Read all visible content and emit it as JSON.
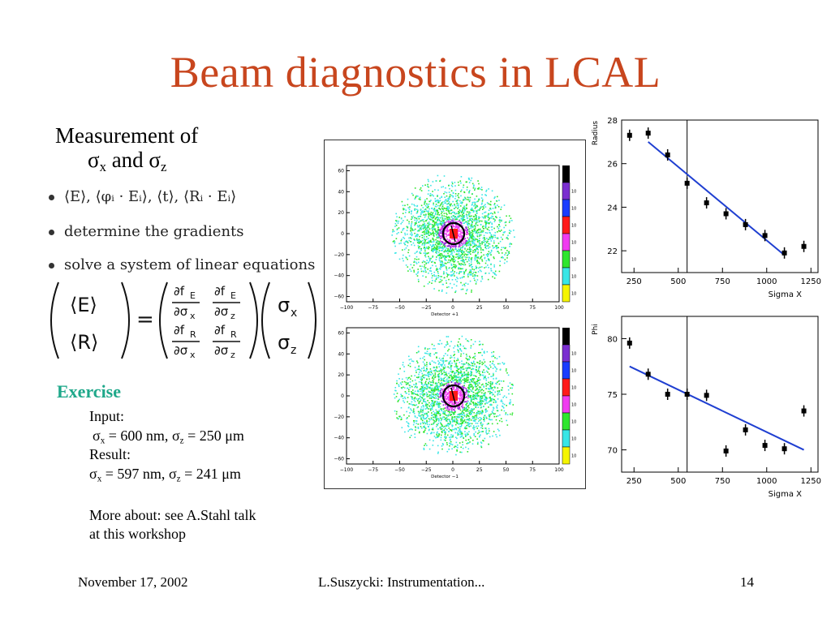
{
  "slide": {
    "title": "Beam diagnostics in LCAL",
    "measurement_line1": "Measurement of",
    "measurement_sigma_x": "σ",
    "measurement_x": "x",
    "measurement_and": " and ",
    "measurement_sigma_z": "σ",
    "measurement_z": "z",
    "bullets": [
      "⟨E⟩, ⟨φᵢ · Eᵢ⟩, ⟨t⟩, ⟨Rᵢ · Eᵢ⟩",
      "determine the gradients",
      "solve a system of linear equations"
    ],
    "equation": {
      "lhs": [
        "⟨E⟩",
        "⟨R⟩"
      ],
      "eq": "=",
      "m11_num": "∂f",
      "m11_sub": "E",
      "m11_den": "∂σ",
      "m11_dsub": "x",
      "m12_num": "∂f",
      "m12_sub": "E",
      "m12_den": "∂σ",
      "m12_dsub": "z",
      "m21_num": "∂f",
      "m21_sub": "R",
      "m21_den": "∂σ",
      "m21_dsub": "x",
      "m22_num": "∂f",
      "m22_sub": "R",
      "m22_den": "∂σ",
      "m22_dsub": "z",
      "rhs": [
        "σ",
        "σ"
      ],
      "rhs_sub": [
        "x",
        "z"
      ]
    },
    "exercise": {
      "heading": "Exercise",
      "input_label": "Input:",
      "input_sx": "σ",
      "input_x": "x",
      "input_mid": " = 600 nm, ",
      "input_sz": "σ",
      "input_z": "z",
      "input_end": " = 250 μm",
      "result_label": "Result:",
      "result_sx": "σ",
      "result_x": "x",
      "result_mid": " = 597 nm, ",
      "result_sz": "σ",
      "result_z": "z",
      "result_end": " = 241 μm",
      "more1": "More about: see A.Stahl talk",
      "more2": "at this workshop"
    },
    "footer": {
      "date": "November 17, 2002",
      "author": "L.Suszycki: Instrumentation...",
      "page": "14"
    }
  },
  "colors": {
    "title": "#c8461e",
    "exercise": "#1ea88a",
    "fit_line": "#1f3fd1"
  },
  "chart_data": [
    {
      "type": "heatmap",
      "xlabel": "Detector +1",
      "xticks": [
        "−100",
        "−75",
        "−50",
        "−25",
        "0",
        "25",
        "50",
        "75",
        "100"
      ],
      "yticks": [
        "60",
        "40",
        "20",
        "0",
        "−20",
        "−40",
        "−60"
      ],
      "xlim": [
        -100,
        100
      ],
      "ylim": [
        -65,
        65
      ],
      "colorbar": [
        "violet",
        "blue",
        "red",
        "magenta",
        "green",
        "cyan",
        "yellow"
      ],
      "colorbar_ticks": [
        "10",
        "10",
        "10",
        "10",
        "10",
        "10",
        "10"
      ]
    },
    {
      "type": "heatmap",
      "xlabel": "Detector −1",
      "xticks": [
        "−100",
        "−75",
        "−50",
        "−25",
        "0",
        "25",
        "50",
        "75",
        "100"
      ],
      "yticks": [
        "60",
        "40",
        "20",
        "0",
        "−20",
        "−40",
        "−60"
      ],
      "xlim": [
        -100,
        100
      ],
      "ylim": [
        -65,
        65
      ],
      "colorbar": [
        "violet",
        "blue",
        "red",
        "magenta",
        "green",
        "cyan",
        "yellow"
      ],
      "colorbar_ticks": [
        "10",
        "10",
        "10",
        "10",
        "10",
        "10",
        "10"
      ]
    },
    {
      "type": "scatter",
      "ylabel": "Radius",
      "xlabel": "Sigma X",
      "xlim": [
        180,
        1290
      ],
      "ylim": [
        21,
        28
      ],
      "xticks": [
        250,
        500,
        750,
        1000,
        1250
      ],
      "yticks": [
        22,
        24,
        26,
        28
      ],
      "vline": 550,
      "points": [
        [
          225,
          27.3
        ],
        [
          330,
          27.4
        ],
        [
          440,
          26.4
        ],
        [
          550,
          25.1
        ],
        [
          660,
          24.2
        ],
        [
          770,
          23.7
        ],
        [
          880,
          23.2
        ],
        [
          990,
          22.7
        ],
        [
          1100,
          21.9
        ],
        [
          1210,
          22.2
        ]
      ],
      "fit": [
        [
          330,
          27.0
        ],
        [
          1100,
          21.8
        ]
      ]
    },
    {
      "type": "scatter",
      "ylabel": "Phi",
      "xlabel": "Sigma X",
      "xlim": [
        180,
        1290
      ],
      "ylim": [
        68,
        82
      ],
      "xticks": [
        250,
        500,
        750,
        1000,
        1250
      ],
      "yticks": [
        70,
        75,
        80
      ],
      "vline": 550,
      "points": [
        [
          225,
          79.6
        ],
        [
          330,
          76.8
        ],
        [
          440,
          75.0
        ],
        [
          550,
          75.0
        ],
        [
          660,
          74.9
        ],
        [
          770,
          69.9
        ],
        [
          880,
          71.8
        ],
        [
          990,
          70.4
        ],
        [
          1100,
          70.1
        ],
        [
          1210,
          73.5
        ]
      ],
      "fit": [
        [
          225,
          77.5
        ],
        [
          1210,
          70.0
        ]
      ]
    }
  ]
}
